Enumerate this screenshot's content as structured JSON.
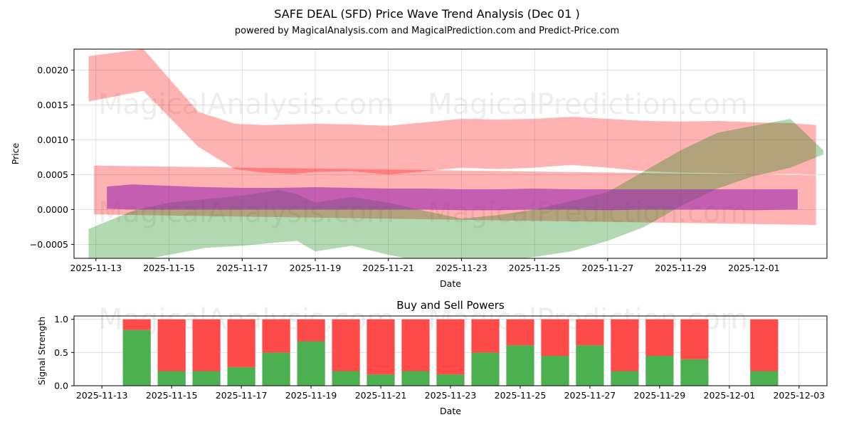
{
  "chart_data": [
    {
      "type": "area",
      "title": "SAFE DEAL (SFD) Price Wave Trend Analysis (Dec 01 )",
      "subtitle": "powered by MagicalAnalysis.com and MagicalPrediction.com and Predict-Price.com",
      "xlabel": "Date",
      "ylabel": "Price",
      "ylim": [
        -0.0007,
        0.0023
      ],
      "xlim_day": [
        -0.6,
        20.0
      ],
      "day_origin": "2025-11-13",
      "x_ticks": [
        "2025-11-13",
        "2025-11-15",
        "2025-11-17",
        "2025-11-19",
        "2025-11-21",
        "2025-11-23",
        "2025-11-25",
        "2025-11-27",
        "2025-11-29",
        "2025-12-01"
      ],
      "x_tick_days": [
        0,
        2,
        4,
        6,
        8,
        10,
        12,
        14,
        16,
        18
      ],
      "y_ticks": [
        "−0.0005",
        "0.0000",
        "0.0005",
        "0.0010",
        "0.0015",
        "0.0020"
      ],
      "y_tick_values": [
        -0.0005,
        0,
        0.0005,
        0.001,
        0.0015,
        0.002
      ],
      "grid": true,
      "watermarks": [
        "MagicalAnalysis.com",
        "MagicalPrediction.com",
        "MagicalAnalysis.com",
        "MagicalPrediction.com"
      ],
      "series": [
        {
          "name": "red-wave-upper",
          "color": "#ff0000",
          "opacity": 0.3,
          "x": [
            -0.2,
            1.3,
            2.8,
            3.8,
            4.6,
            5.4,
            6.0,
            7.0,
            8.0,
            9.0,
            10.0,
            11.0,
            12.0,
            13.0,
            14.0,
            15.0,
            16.0,
            17.0,
            18.0,
            19.0,
            19.7
          ],
          "upper": [
            0.0022,
            0.0023,
            0.0014,
            0.00123,
            0.00121,
            0.00122,
            0.00123,
            0.00122,
            0.0012,
            0.00125,
            0.0013,
            0.00129,
            0.0013,
            0.00133,
            0.0013,
            0.00127,
            0.00126,
            0.00127,
            0.00125,
            0.00124,
            0.00121
          ],
          "lower": [
            0.00155,
            0.0017,
            0.0009,
            0.00058,
            0.00053,
            0.00051,
            0.00054,
            0.00055,
            0.0005,
            0.00055,
            0.0006,
            0.00058,
            0.0006,
            0.00064,
            0.0006,
            0.00055,
            0.00053,
            0.00052,
            0.0005,
            0.00051,
            0.0005
          ]
        },
        {
          "name": "red-wave-flat",
          "color": "#ff0000",
          "opacity": 0.3,
          "x": [
            -0.05,
            19.7
          ],
          "upper": [
            0.00063,
            0.00049
          ],
          "lower": [
            -7e-05,
            -0.00022
          ]
        },
        {
          "name": "green-wave",
          "color": "#008000",
          "opacity": 0.3,
          "x": [
            -0.2,
            1.0,
            2.0,
            3.0,
            4.0,
            5.0,
            5.5,
            6.0,
            7.0,
            8.0,
            9.0,
            10.0,
            11.0,
            12.0,
            13.0,
            14.0,
            15.0,
            16.0,
            17.0,
            18.0,
            19.0,
            19.9
          ],
          "upper": [
            -0.00028,
            -2e-05,
            0.0001,
            0.00015,
            0.0002,
            0.00028,
            0.00022,
            0.0001,
            0.00018,
            0.0001,
            -2e-05,
            -0.00013,
            -8e-05,
            0.0,
            0.00012,
            0.00025,
            0.00055,
            0.00085,
            0.0011,
            0.0012,
            0.0013,
            0.00085
          ],
          "lower": [
            -0.00075,
            -0.00075,
            -0.00065,
            -0.00055,
            -0.00052,
            -0.00047,
            -0.00045,
            -0.0006,
            -0.00052,
            -0.00065,
            -0.00075,
            -0.00075,
            -0.00075,
            -0.00068,
            -0.0006,
            -0.00045,
            -0.00025,
            5e-05,
            0.0003,
            0.00048,
            0.0006,
            0.00079
          ]
        },
        {
          "name": "purple-band",
          "color": "#9c27b0",
          "opacity": 0.6,
          "x": [
            0.3,
            1.0,
            2.0,
            3.0,
            4.0,
            5.0,
            6.0,
            7.0,
            8.0,
            9.0,
            10.0,
            11.0,
            12.0,
            13.0,
            14.0,
            15.0,
            16.0,
            17.0,
            18.0,
            19.2
          ],
          "upper": [
            0.00033,
            0.00036,
            0.00034,
            0.00032,
            0.00031,
            0.00031,
            0.00032,
            0.00031,
            0.0003,
            0.0003,
            0.00029,
            0.00029,
            0.0003,
            0.00029,
            0.00029,
            0.00029,
            0.00029,
            0.00029,
            0.00029,
            0.00029
          ],
          "lower": [
            1e-05,
            0.0,
            0.0,
            0.0,
            0.0,
            0.0,
            0.0,
            0.0,
            0.0,
            0.0,
            -1e-05,
            -1e-05,
            0.0,
            0.0,
            -1e-05,
            0.0,
            0.0,
            0.0,
            -1e-05,
            0.0
          ]
        }
      ]
    },
    {
      "type": "bar",
      "title": "Buy and Sell Powers",
      "xlabel": "Date",
      "ylabel": "Signal Strength",
      "ylim": [
        0,
        1.05
      ],
      "xlim_day": [
        -0.8,
        20.8
      ],
      "day_origin": "2025-11-13",
      "x_ticks": [
        "2025-11-13",
        "2025-11-15",
        "2025-11-17",
        "2025-11-19",
        "2025-11-21",
        "2025-11-23",
        "2025-11-25",
        "2025-11-27",
        "2025-11-29",
        "2025-12-01",
        "2025-12-03"
      ],
      "x_tick_days": [
        0,
        2,
        4,
        6,
        8,
        10,
        12,
        14,
        16,
        18,
        20
      ],
      "y_ticks": [
        "0.0",
        "0.5",
        "1.0"
      ],
      "y_tick_values": [
        0,
        0.5,
        1.0
      ],
      "grid": true,
      "watermarks": [
        "MagicalAnalysis.com",
        "MagicalPrediction.com"
      ],
      "categories": [
        "2025-11-14",
        "2025-11-15",
        "2025-11-16",
        "2025-11-17",
        "2025-11-18",
        "2025-11-19",
        "2025-11-20",
        "2025-11-21",
        "2025-11-22",
        "2025-11-23",
        "2025-11-24",
        "2025-11-25",
        "2025-11-26",
        "2025-11-27",
        "2025-11-28",
        "2025-11-29",
        "2025-11-30",
        "2025-12-02"
      ],
      "category_days": [
        1,
        2,
        3,
        4,
        5,
        6,
        7,
        8,
        9,
        10,
        11,
        12,
        13,
        14,
        15,
        16,
        17,
        19
      ],
      "series": [
        {
          "name": "Buy",
          "color": "#4caf50",
          "values": [
            0.84,
            0.22,
            0.22,
            0.28,
            0.5,
            0.67,
            0.22,
            0.17,
            0.22,
            0.17,
            0.5,
            0.61,
            0.45,
            0.61,
            0.22,
            0.45,
            0.4,
            0.22
          ]
        },
        {
          "name": "Sell",
          "color": "#ff4a4a",
          "values": [
            0.16,
            0.78,
            0.78,
            0.72,
            0.5,
            0.33,
            0.78,
            0.83,
            0.78,
            0.83,
            0.5,
            0.39,
            0.55,
            0.39,
            0.78,
            0.55,
            0.6,
            0.78
          ]
        }
      ]
    }
  ]
}
